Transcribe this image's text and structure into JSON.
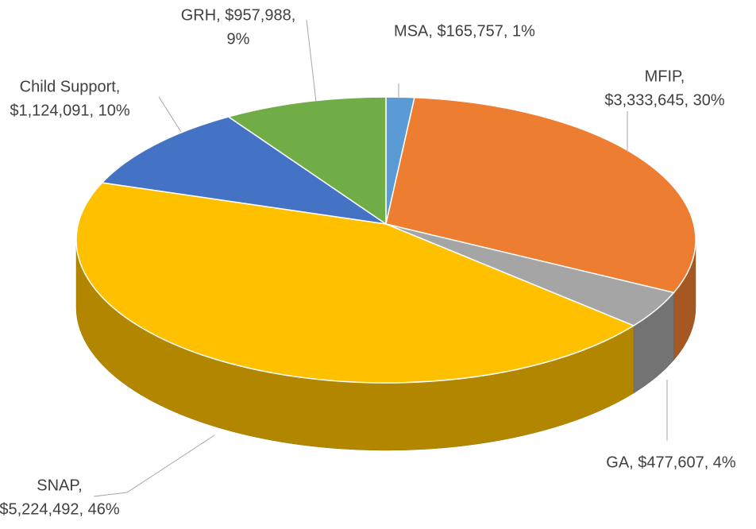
{
  "chart_data": {
    "type": "pie",
    "categories": [
      "MSA",
      "MFIP",
      "GA",
      "SNAP",
      "Child Support",
      "GRH"
    ],
    "values": [
      165757,
      3333645,
      477607,
      5224492,
      1124091,
      957988
    ],
    "value_labels": [
      [
        "MSA, $165,757, 1%"
      ],
      [
        "MFIP,",
        "$3,333,645, 30%"
      ],
      [
        "GA, $477,607, 4%"
      ],
      [
        "SNAP,",
        "$5,224,492, 46%"
      ],
      [
        "Child Support,",
        "$1,124,091, 10%"
      ],
      [
        "GRH, $957,988,",
        "9%"
      ]
    ],
    "colors": [
      "#5b9bd5",
      "#ed7d31",
      "#a5a5a5",
      "#ffc000",
      "#4472c4",
      "#70ad47"
    ],
    "three_d": true
  }
}
